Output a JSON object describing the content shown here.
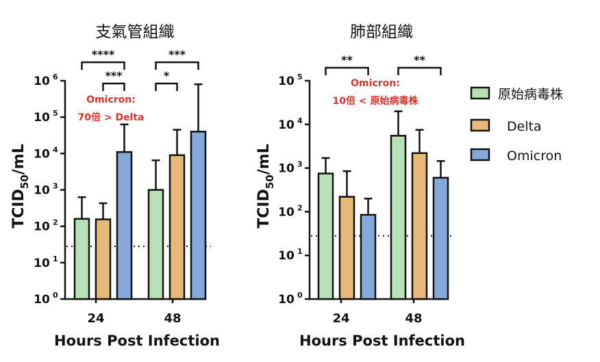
{
  "chart_data": [
    {
      "type": "bar",
      "scale": "log",
      "title": "支氣管組織",
      "xlabel": "Hours Post Infection",
      "ylabel_main": "TCID",
      "ylabel_sub": "50",
      "ylabel_tail": "/mL",
      "ylim": [
        1,
        1000000
      ],
      "yticks": [
        {
          "base": "10",
          "exp": "0"
        },
        {
          "base": "10",
          "exp": "1"
        },
        {
          "base": "10",
          "exp": "2"
        },
        {
          "base": "10",
          "exp": "3"
        },
        {
          "base": "10",
          "exp": "4"
        },
        {
          "base": "10",
          "exp": "5"
        },
        {
          "base": "10",
          "exp": "6"
        }
      ],
      "categories": [
        "24",
        "48"
      ],
      "series": [
        {
          "name": "原始病毒株",
          "values": [
            160,
            1000
          ],
          "errors": [
            630,
            6500
          ]
        },
        {
          "name": "Delta",
          "values": [
            155,
            9000
          ],
          "errors": [
            430,
            45000
          ]
        },
        {
          "name": "Omicron",
          "values": [
            11000,
            40000
          ],
          "errors": [
            63000,
            800000
          ]
        }
      ],
      "detection_limit": 28,
      "significance": [
        {
          "label": "****",
          "group": 0,
          "from": 0,
          "to": 2,
          "level": 0
        },
        {
          "label": "***",
          "group": 0,
          "from": 1,
          "to": 2,
          "level": 1
        },
        {
          "label": "***",
          "group": 1,
          "from": 0,
          "to": 2,
          "level": 0
        },
        {
          "label": "*",
          "group": 1,
          "from": 0,
          "to": 1,
          "level": 1
        }
      ],
      "annotation": [
        "Omicron:",
        "70倍 > Delta"
      ]
    },
    {
      "type": "bar",
      "scale": "log",
      "title": "肺部組織",
      "xlabel": "Hours Post Infection",
      "ylabel_main": "TCID",
      "ylabel_sub": "50",
      "ylabel_tail": "/mL",
      "ylim": [
        1,
        100000
      ],
      "yticks": [
        {
          "base": "10",
          "exp": "0"
        },
        {
          "base": "10",
          "exp": "1"
        },
        {
          "base": "10",
          "exp": "2"
        },
        {
          "base": "10",
          "exp": "3"
        },
        {
          "base": "10",
          "exp": "4"
        },
        {
          "base": "10",
          "exp": "5"
        }
      ],
      "categories": [
        "24",
        "48"
      ],
      "series": [
        {
          "name": "原始病毒株",
          "values": [
            750,
            5500
          ],
          "errors": [
            1700,
            20000
          ]
        },
        {
          "name": "Delta",
          "values": [
            220,
            2200
          ],
          "errors": [
            850,
            7500
          ]
        },
        {
          "name": "Omicron",
          "values": [
            85,
            600
          ],
          "errors": [
            200,
            1450
          ]
        }
      ],
      "detection_limit": 28,
      "significance": [
        {
          "label": "**",
          "group": 0,
          "from": 0,
          "to": 2,
          "level": 0
        },
        {
          "label": "**",
          "group": 1,
          "from": 0,
          "to": 2,
          "level": 0
        }
      ],
      "annotation": [
        "Omicron:",
        "10倍 < 原始病毒株"
      ]
    }
  ],
  "legend": {
    "items": [
      {
        "label": "原始病毒株",
        "color": "#b8e2b6"
      },
      {
        "label": "Delta",
        "color": "#e6b87a"
      },
      {
        "label": "Omicron",
        "color": "#86a9dc"
      }
    ]
  },
  "colors": [
    "#b8e2b6",
    "#e6b87a",
    "#86a9dc"
  ]
}
